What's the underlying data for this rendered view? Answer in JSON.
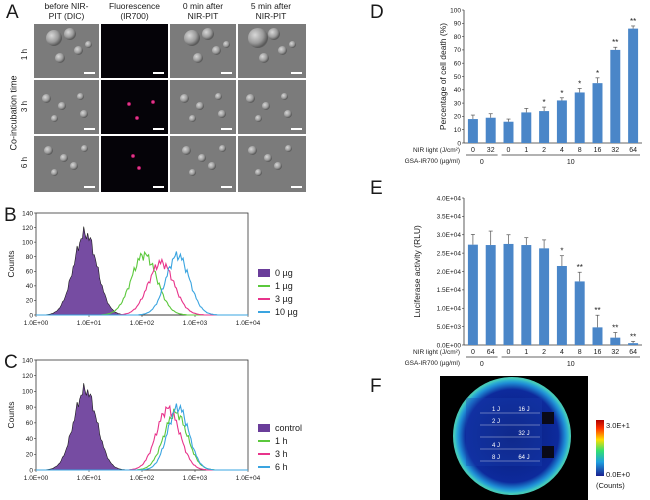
{
  "panelA": {
    "label": "A",
    "col_headers": [
      "before NIR-\nPIT (DIC)",
      "Fluorescence\n(IR700)",
      "0 min after\nNIR-PIT",
      "5 min after\nNIR-PIT"
    ],
    "col_lines": [
      [
        "before NIR-",
        "PIT (DIC)"
      ],
      [
        "Fluorescence",
        "(IR700)"
      ],
      [
        "0 min after",
        "NIR-PIT"
      ],
      [
        "5 min after",
        "NIR-PIT"
      ]
    ],
    "row_labels": [
      "1 h",
      "3 h",
      "6 h"
    ],
    "axis_label": "Co-incubation time"
  },
  "panelB": {
    "label": "B",
    "chart_data": {
      "type": "area",
      "xscale": "log",
      "xlim": [
        1,
        10000
      ],
      "ylim": [
        0,
        140
      ],
      "ylabel": "Counts",
      "xticks": [
        "1.0E+00",
        "1.0E+01",
        "1.0E+02",
        "1.0E+03",
        "1.0E+04"
      ],
      "yticks": [
        "0",
        "20",
        "40",
        "60",
        "80",
        "100",
        "120",
        "140"
      ],
      "series": [
        {
          "name": "0 µg",
          "color": "#6a3d9a",
          "filled": true,
          "peak_x": 8.5,
          "peak_y": 112,
          "sigma": 0.22
        },
        {
          "name": "1 µg",
          "color": "#5bc83c",
          "filled": false,
          "peak_x": 110,
          "peak_y": 83,
          "sigma": 0.24
        },
        {
          "name": "3 µg",
          "color": "#e8348b",
          "filled": false,
          "peak_x": 230,
          "peak_y": 72,
          "sigma": 0.24
        },
        {
          "name": "10 µg",
          "color": "#3aa4e0",
          "filled": false,
          "peak_x": 470,
          "peak_y": 82,
          "sigma": 0.22
        }
      ]
    }
  },
  "panelC": {
    "label": "C",
    "chart_data": {
      "type": "area",
      "xscale": "log",
      "xlim": [
        1,
        10000
      ],
      "ylim": [
        0,
        140
      ],
      "ylabel": "Counts",
      "xticks": [
        "1.0E+00",
        "1.0E+01",
        "1.0E+02",
        "1.0E+03",
        "1.0E+04"
      ],
      "yticks": [
        "0",
        "20",
        "40",
        "60",
        "80",
        "100",
        "120",
        "140"
      ],
      "series": [
        {
          "name": "control",
          "color": "#6a3d9a",
          "filled": true,
          "peak_x": 8.5,
          "peak_y": 102,
          "sigma": 0.22
        },
        {
          "name": "1 h",
          "color": "#5bc83c",
          "filled": false,
          "peak_x": 430,
          "peak_y": 73,
          "sigma": 0.22
        },
        {
          "name": "3 h",
          "color": "#e8348b",
          "filled": false,
          "peak_x": 310,
          "peak_y": 78,
          "sigma": 0.22
        },
        {
          "name": "6 h",
          "color": "#3aa4e0",
          "filled": false,
          "peak_x": 480,
          "peak_y": 80,
          "sigma": 0.2
        }
      ]
    }
  },
  "panelD": {
    "label": "D",
    "chart_data": {
      "type": "bar",
      "ylabel": "Percentage of cell death (%)",
      "ylim": [
        0,
        100
      ],
      "yticks": [
        "0",
        "10",
        "20",
        "30",
        "40",
        "50",
        "60",
        "70",
        "80",
        "90",
        "100"
      ],
      "nir_label": "NIR light (J/cm²)",
      "gsa_label": "GSA-IR700 (µg/ml)",
      "categories": [
        "0",
        "32",
        "0",
        "1",
        "2",
        "4",
        "8",
        "16",
        "32",
        "64"
      ],
      "values": [
        18,
        19,
        16,
        23,
        24,
        32,
        38,
        45,
        70,
        86
      ],
      "errors": [
        3,
        3,
        2,
        3,
        3,
        2,
        3,
        4,
        2,
        2
      ],
      "significance": [
        "",
        "",
        "",
        "",
        "*",
        "*",
        "*",
        "*",
        "**",
        "**"
      ],
      "groups": [
        {
          "label": "0",
          "from": 0,
          "to": 1
        },
        {
          "label": "10",
          "from": 2,
          "to": 9
        }
      ],
      "bar_color": "#4a86c8"
    }
  },
  "panelE": {
    "label": "E",
    "chart_data": {
      "type": "bar",
      "ylabel": "Luciferase activity (RLU)",
      "ylim": [
        0,
        40000
      ],
      "yticks": [
        "0.0E+00",
        "5.0E+03",
        "1.0E+04",
        "1.5E+04",
        "2.0E+04",
        "2.5E+04",
        "3.0E+04",
        "3.5E+04",
        "4.0E+04"
      ],
      "nir_label": "NIR light (J/cm²)",
      "gsa_label": "GSA-IR700 (µg/ml)",
      "categories": [
        "0",
        "64",
        "0",
        "1",
        "2",
        "4",
        "8",
        "16",
        "32",
        "64"
      ],
      "values": [
        27300,
        27200,
        27500,
        27200,
        26300,
        21500,
        17300,
        4800,
        2000,
        500
      ],
      "errors": [
        2800,
        3800,
        2500,
        2000,
        2300,
        2800,
        2500,
        3300,
        1400,
        500
      ],
      "significance": [
        "",
        "",
        "",
        "",
        "",
        "*",
        "**",
        "**",
        "**",
        "**"
      ],
      "groups": [
        {
          "label": "0",
          "from": 0,
          "to": 1
        },
        {
          "label": "10",
          "from": 2,
          "to": 9
        }
      ],
      "bar_color": "#4a86c8"
    }
  },
  "panelF": {
    "label": "F",
    "well_labels": [
      [
        "1 J",
        "16 J"
      ],
      [
        "2 J",
        ""
      ],
      [
        "",
        "32 J"
      ],
      [
        "4 J",
        ""
      ],
      [
        "8 J",
        "64 J"
      ]
    ],
    "colorbar_max": "3.0E+1",
    "colorbar_min": "0.0E+0",
    "colorbar_unit": "(Counts)"
  }
}
